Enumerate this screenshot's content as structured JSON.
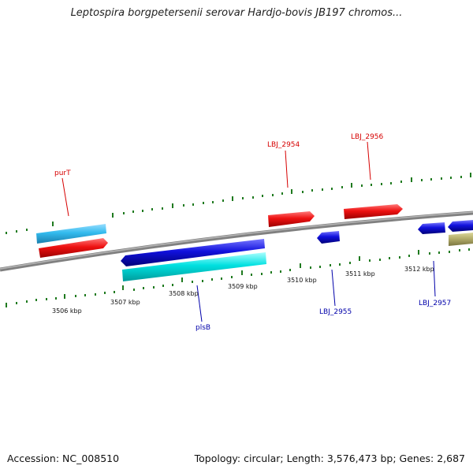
{
  "title": "Leptospira borgpetersenii serovar Hardjo-bovis JB197 chromos...",
  "footer": {
    "accession": "Accession: NC_008510",
    "topology": "Topology: circular; Length: 3,576,473 bp; Genes: 2,687"
  },
  "colors": {
    "backbone": "#808080",
    "tick": "#1f7a1f",
    "forward_gene": "#ee1111",
    "reverse_gene": "#1111dd",
    "cds_light_blue": "#33bbee",
    "cds_cyan": "#00e0e0",
    "other_feature": "#b3ad6a",
    "label_red": "#d60000",
    "label_blue": "#0000aa"
  },
  "kbp_labels": [
    "3506 kbp",
    "3507 kbp",
    "3508 kbp",
    "3509 kbp",
    "3510 kbp",
    "3511 kbp",
    "3512 kbp"
  ],
  "gene_labels": {
    "purT": "purT",
    "lbj2954": "LBJ_2954",
    "lbj2956": "LBJ_2956",
    "plsB": "plsB",
    "lbj2955": "LBJ_2955",
    "lbj2957": "LBJ_2957"
  }
}
